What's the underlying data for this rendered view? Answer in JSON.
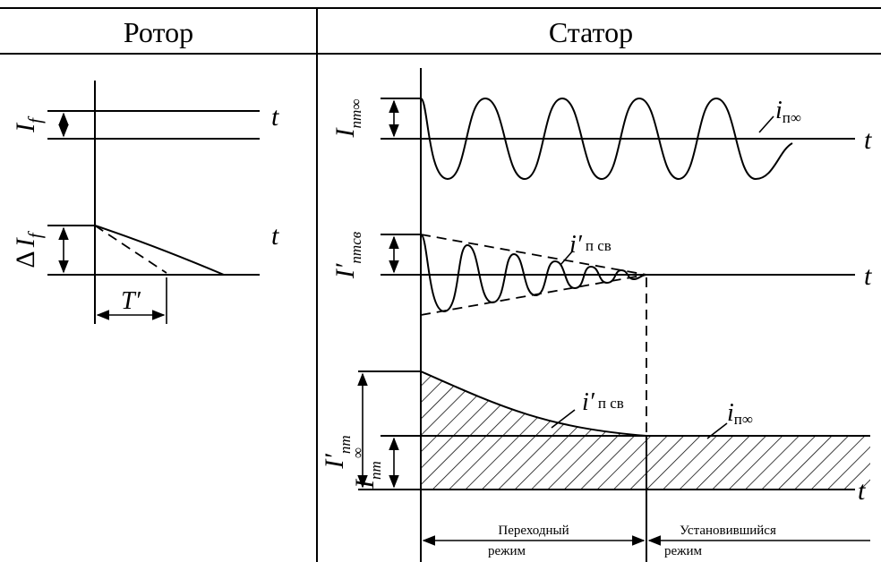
{
  "headers": {
    "rotor": "Ротор",
    "stator": "Статор"
  },
  "rotor": {
    "if_main": "I",
    "if_sub": "f",
    "delta": "Δ",
    "dif_main": "I",
    "dif_sub": "f",
    "t1": "t",
    "t2": "t",
    "tprime": "T′"
  },
  "stator": {
    "p1_label_main": "I",
    "p1_label_sub": "пm∞",
    "p1_curve_main": "i",
    "p1_curve_sub": "п∞",
    "p1_t": "t",
    "p2_label_main": "I′",
    "p2_label_sub": "пmсв",
    "p2_curve_main": "i′",
    "p2_curve_sub": "п св",
    "p2_t": "t",
    "p3_outer_main": "I′",
    "p3_outer_sub": "пm",
    "p3_inner_main": "I",
    "p3_inner_sub": "пm",
    "p3_inner_inf": "∞",
    "p3_curve1_main": "i′",
    "p3_curve1_sub": "п св",
    "p3_curve2_main": "i",
    "p3_curve2_sub": "п∞",
    "p3_t": "t",
    "transient_l1": "Переходный",
    "transient_l2": "режим",
    "steady_l1": "Установившийся",
    "steady_l2": "режим"
  }
}
